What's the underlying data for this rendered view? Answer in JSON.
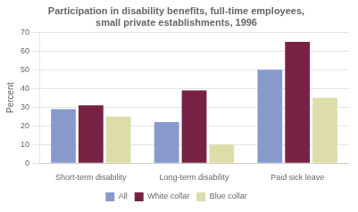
{
  "chart_data": {
    "type": "bar",
    "title": "Participation in disability benefits, full-time employees,\nsmall private establishments, 1996",
    "categories": [
      "Short-term disability",
      "Long-term disability",
      "Paid sick leave"
    ],
    "series": [
      {
        "name": "All",
        "color": "#8899cc",
        "values": [
          29,
          22,
          50
        ]
      },
      {
        "name": "White collar",
        "color": "#772244",
        "values": [
          31,
          39,
          65
        ]
      },
      {
        "name": "Blue collar",
        "color": "#ddddaa",
        "values": [
          25,
          10,
          35
        ]
      }
    ],
    "ylabel": "Percent",
    "ylim": [
      0,
      70
    ],
    "yticks": [
      0,
      10,
      20,
      30,
      40,
      50,
      60,
      70
    ],
    "grid": true,
    "legend": "bottom"
  }
}
